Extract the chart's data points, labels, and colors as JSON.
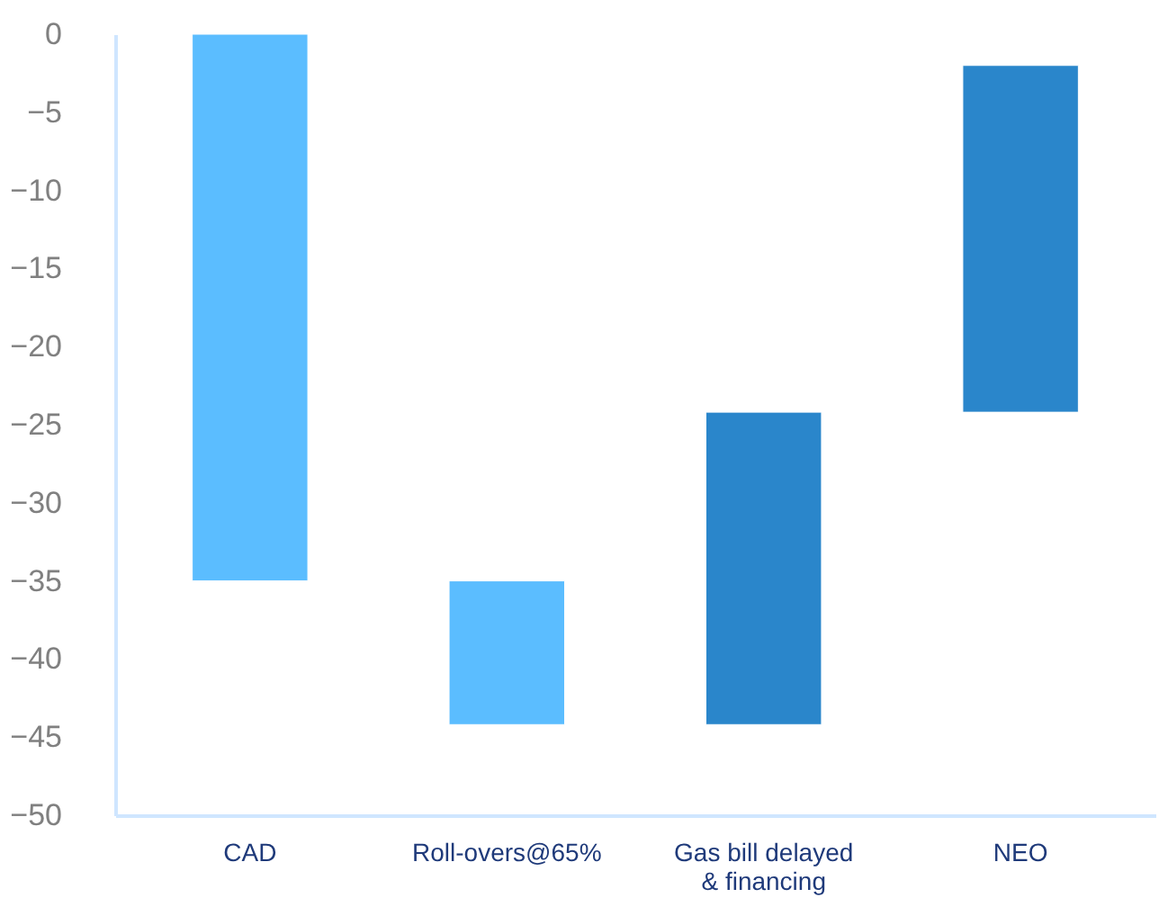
{
  "chart_data": {
    "type": "bar",
    "categories": [
      "CAD",
      "Roll-overs@65%",
      "Gas bill delayed\n& financing",
      "NEO"
    ],
    "base": [
      0,
      -35,
      -44.2,
      -24.2
    ],
    "values": [
      -35,
      -9.2,
      20,
      22.2
    ],
    "colors": [
      "#5bbdff",
      "#5bbdff",
      "#2a86cb",
      "#2a86cb"
    ],
    "ylim": [
      -50,
      0
    ],
    "yticks": [
      0,
      -5,
      -10,
      -15,
      -20,
      -25,
      -30,
      -35,
      -40,
      -45,
      -50
    ],
    "grid": false,
    "legend": false
  }
}
